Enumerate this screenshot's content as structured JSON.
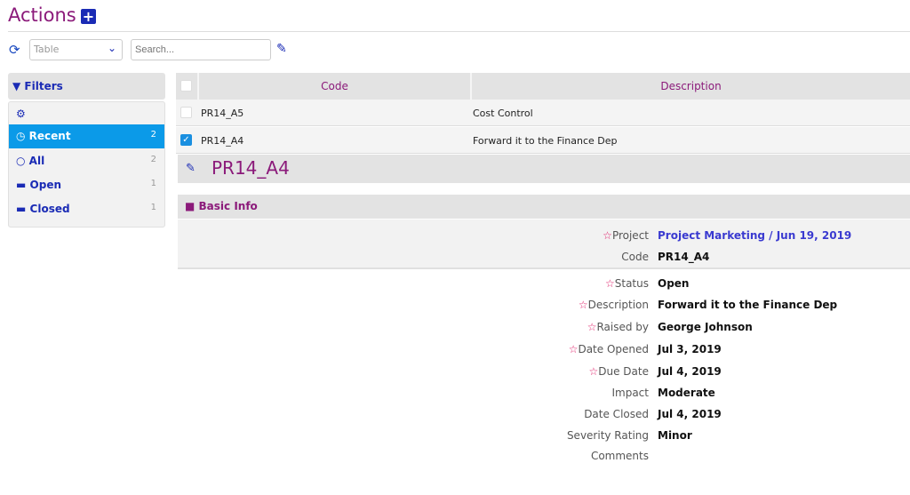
{
  "header": {
    "title": "Actions",
    "add_icon": "plus-square-icon"
  },
  "toolbar": {
    "view_select": "Table",
    "search_placeholder": "Search...",
    "refresh_icon": "refresh-icon",
    "edit_icon": "edit-icon"
  },
  "filters": {
    "title": "Filters",
    "items": [
      {
        "label": "Recent",
        "count": "2",
        "icon": "clock-icon",
        "active": true
      },
      {
        "label": "All",
        "count": "2",
        "icon": "circle-icon"
      },
      {
        "label": "Open",
        "count": "1",
        "icon": "folder-icon"
      },
      {
        "label": "Closed",
        "count": "1",
        "icon": "folder-icon"
      }
    ]
  },
  "table": {
    "columns": [
      "Code",
      "Description"
    ],
    "rows": [
      {
        "code": "PR14_A5",
        "description": "Cost Control",
        "checked": false
      },
      {
        "code": "PR14_A4",
        "description": "Forward it to the Finance Dep",
        "checked": true
      }
    ]
  },
  "detail": {
    "code": "PR14_A4",
    "section": "Basic Info",
    "fields": [
      {
        "label": "Project",
        "value": "Project Marketing / Jun 19, 2019",
        "required": true
      },
      {
        "label": "Code",
        "value": "PR14_A4"
      },
      {
        "label": "Status",
        "value": "Open",
        "required": true
      },
      {
        "label": "Description",
        "value": "Forward it to the Finance Dep",
        "required": true
      },
      {
        "label": "Raised by",
        "value": "George Johnson",
        "required": true
      },
      {
        "label": "Date Opened",
        "value": "Jul 3, 2019",
        "required": true
      },
      {
        "label": "Due Date",
        "value": "Jul 4, 2019",
        "required": true
      },
      {
        "label": "Impact",
        "value": "Moderate"
      },
      {
        "label": "Date Closed",
        "value": "Jul 4, 2019"
      },
      {
        "label": "Severity Rating",
        "value": "Minor"
      },
      {
        "label": "Comments",
        "value": ""
      }
    ]
  },
  "colors": {
    "title": "#8b1a7a",
    "accent": "#1a2bb5",
    "active": "#0b9ae8",
    "required": "#e0206a"
  }
}
